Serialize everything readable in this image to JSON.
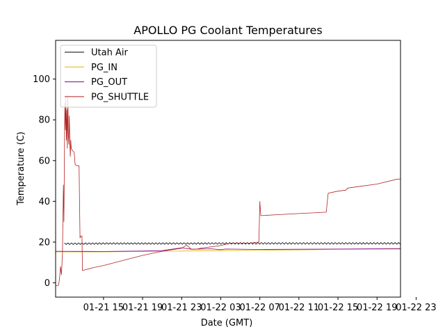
{
  "chart_data": {
    "type": "line",
    "title": "APOLLO PG Coolant Temperatures",
    "xlabel": "Date (GMT)",
    "ylabel": "Temperature (C)",
    "x_tick_labels": [
      "01-21 15",
      "01-21 19",
      "01-21 23",
      "01-22 03",
      "01-22 07",
      "01-22 11",
      "01-22 15",
      "01-22 19",
      "01-22 23"
    ],
    "y_ticks": [
      0,
      20,
      40,
      60,
      80,
      100
    ],
    "ylim": [
      -7,
      119
    ],
    "xlim_hours": [
      -4.9,
      30.4
    ],
    "x_unit": "hours after 01-21 15:00 GMT",
    "grid": false,
    "legend_position": "top-left",
    "series": [
      {
        "name": "Utah Air",
        "color": "#000000",
        "points": [
          [
            -4.0,
            19.2
          ],
          [
            0,
            19.3
          ],
          [
            8,
            19.3
          ],
          [
            16,
            19.4
          ],
          [
            24,
            19.4
          ],
          [
            30.4,
            19.4
          ]
        ],
        "noise": 0.4
      },
      {
        "name": "PG_IN",
        "color": "#e6b400",
        "points": [
          [
            -4.9,
            15.2
          ],
          [
            -1.5,
            15.2
          ],
          [
            0,
            15.2
          ],
          [
            4,
            15.4
          ],
          [
            8,
            15.6
          ],
          [
            12,
            15.8
          ],
          [
            16,
            16.0
          ],
          [
            20,
            16.2
          ],
          [
            24,
            16.4
          ],
          [
            30.4,
            16.6
          ]
        ],
        "noise": 0
      },
      {
        "name": "PG_OUT",
        "color": "#800080",
        "points": [
          [
            -4.9,
            15.5
          ],
          [
            0,
            15.4
          ],
          [
            4,
            15.6
          ],
          [
            6,
            15.8
          ],
          [
            8,
            17.2
          ],
          [
            9,
            16.5
          ],
          [
            11,
            16.7
          ],
          [
            12,
            16.3
          ],
          [
            12.5,
            16.6
          ],
          [
            16,
            16.4
          ],
          [
            20,
            16.5
          ],
          [
            24,
            16.6
          ],
          [
            30.4,
            16.8
          ]
        ],
        "noise": 0
      },
      {
        "name": "PG_SHUTTLE",
        "color": "#b22222",
        "points": [
          [
            -4.9,
            -1.5
          ],
          [
            -4.6,
            -1.2
          ],
          [
            -4.5,
            2
          ],
          [
            -4.4,
            8
          ],
          [
            -4.3,
            4
          ],
          [
            -4.2,
            14
          ],
          [
            -4.1,
            48
          ],
          [
            -4.05,
            30
          ],
          [
            -4.0,
            60
          ],
          [
            -3.95,
            88
          ],
          [
            -3.9,
            75
          ],
          [
            -3.85,
            92
          ],
          [
            -3.8,
            70
          ],
          [
            -3.75,
            85
          ],
          [
            -3.7,
            66
          ],
          [
            -3.65,
            92
          ],
          [
            -3.6,
            72
          ],
          [
            -3.55,
            68
          ],
          [
            -3.5,
            82
          ],
          [
            -3.45,
            70
          ],
          [
            -3.4,
            62
          ],
          [
            -3.35,
            70
          ],
          [
            -3.3,
            66
          ],
          [
            -3.2,
            65
          ],
          [
            -3.0,
            64
          ],
          [
            -2.9,
            58
          ],
          [
            -2.7,
            57.5
          ],
          [
            -2.5,
            57.5
          ],
          [
            -2.4,
            22
          ],
          [
            -2.3,
            23
          ],
          [
            -2.2,
            23
          ],
          [
            -2.15,
            6
          ],
          [
            -1.8,
            6.5
          ],
          [
            -1,
            7.5
          ],
          [
            0,
            8.5
          ],
          [
            2,
            11
          ],
          [
            4,
            13.5
          ],
          [
            6,
            15.5
          ],
          [
            8,
            17
          ],
          [
            8.5,
            18.5
          ],
          [
            9,
            16.5
          ],
          [
            9.5,
            16.5
          ],
          [
            10,
            17
          ],
          [
            12,
            18.3
          ],
          [
            13,
            19.5
          ],
          [
            14,
            19.5
          ],
          [
            15,
            19.5
          ],
          [
            15.5,
            19.8
          ],
          [
            15.9,
            20
          ],
          [
            16.0,
            40
          ],
          [
            16.1,
            33
          ],
          [
            18,
            33.5
          ],
          [
            20,
            34
          ],
          [
            22,
            34.5
          ],
          [
            22.8,
            34.7
          ],
          [
            23.0,
            44
          ],
          [
            23.5,
            44.5
          ],
          [
            24,
            45
          ],
          [
            24.8,
            45.5
          ],
          [
            25.0,
            46.5
          ],
          [
            26,
            47.2
          ],
          [
            28,
            48.5
          ],
          [
            30,
            50.8
          ],
          [
            30.4,
            51
          ]
        ],
        "noise": 0
      }
    ]
  }
}
